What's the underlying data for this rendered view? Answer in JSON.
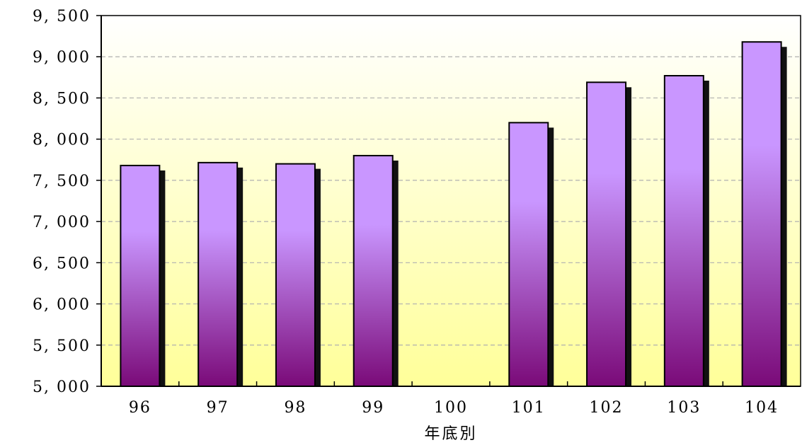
{
  "chart_data": {
    "type": "bar",
    "title": "",
    "xlabel": "年底別",
    "ylabel": "",
    "categories": [
      "96",
      "97",
      "98",
      "99",
      "100",
      "101",
      "102",
      "103",
      "104"
    ],
    "values": [
      7680,
      7715,
      7700,
      7800,
      null,
      8200,
      8690,
      8770,
      9180
    ],
    "ylim": [
      5000,
      9500
    ],
    "yticks": [
      5000,
      5500,
      6000,
      6500,
      7000,
      7500,
      8000,
      8500,
      9000,
      9500
    ],
    "ytick_labels": [
      "5, 000",
      "5, 500",
      "6, 000",
      "6, 500",
      "7, 000",
      "7, 500",
      "8, 000",
      "8, 500",
      "9, 000",
      "9, 500"
    ],
    "grid": true,
    "legend": "none",
    "colors": {
      "bar_top": "#c996ff",
      "bar_bottom": "#7a0a78",
      "shadow": "#111111",
      "background_top": "#ffffff",
      "background_bottom": "#ffff99",
      "gridline": "#b0b0b0"
    }
  }
}
